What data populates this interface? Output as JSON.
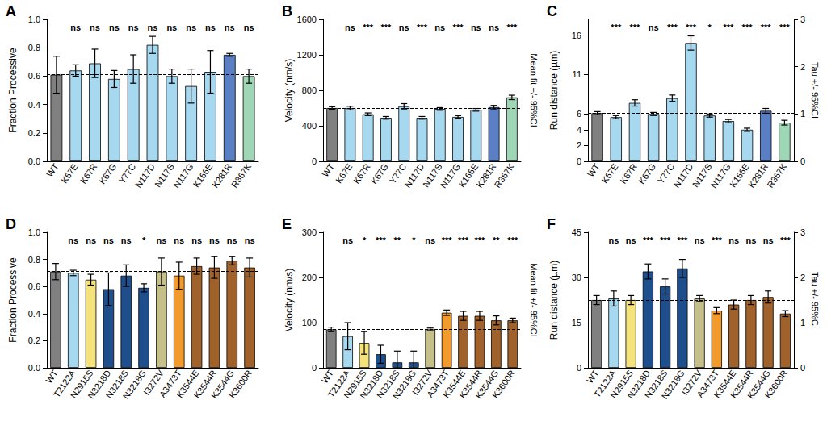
{
  "chart_data": [
    {
      "type": "bar",
      "title": "A",
      "categories": [
        "WT",
        "K67E",
        "K67R",
        "K67G",
        "Y77C",
        "N117D",
        "N117S",
        "N117G",
        "K166E",
        "K281R",
        "R367K"
      ],
      "values": [
        0.61,
        0.64,
        0.69,
        0.58,
        0.65,
        0.82,
        0.6,
        0.53,
        0.63,
        0.75,
        0.6
      ],
      "errors": [
        0.13,
        0.04,
        0.1,
        0.06,
        0.1,
        0.06,
        0.05,
        0.12,
        0.15,
        0.01,
        0.05
      ],
      "annotations": [
        null,
        "ns",
        "ns",
        "ns",
        "ns",
        "ns",
        "ns",
        "ns",
        "ns",
        "ns",
        "ns"
      ],
      "colors": [
        "#808080",
        "#a6d8f0",
        "#a6d8f0",
        "#a6d8f0",
        "#a6d8f0",
        "#a6d8f0",
        "#a6d8f0",
        "#a6d8f0",
        "#a6d8f0",
        "#5b7fc4",
        "#9fd6b5"
      ],
      "y_label": "Fraction Processive",
      "ylim": [
        0,
        1
      ],
      "yticks": [
        {
          "value": 0,
          "label": "0.0"
        },
        {
          "value": 0.2,
          "label": "0.2"
        },
        {
          "value": 0.4,
          "label": "0.4"
        },
        {
          "value": 0.6,
          "label": "0.6"
        },
        {
          "value": 0.8,
          "label": "0.8"
        },
        {
          "value": 1,
          "label": "1.0"
        }
      ]
    },
    {
      "type": "bar",
      "title": "B",
      "categories": [
        "WT",
        "K67E",
        "K67R",
        "K67G",
        "Y77C",
        "N117D",
        "N117S",
        "N117G",
        "K166E",
        "K281R",
        "R367K"
      ],
      "values": [
        600,
        600,
        530,
        490,
        620,
        490,
        590,
        500,
        580,
        610,
        720
      ],
      "errors": [
        15,
        20,
        15,
        15,
        30,
        15,
        15,
        15,
        15,
        20,
        25
      ],
      "annotations": [
        null,
        "ns",
        "***",
        "***",
        "ns",
        "***",
        "ns",
        "***",
        "ns",
        "ns",
        "***"
      ],
      "colors": [
        "#808080",
        "#a6d8f0",
        "#a6d8f0",
        "#a6d8f0",
        "#a6d8f0",
        "#a6d8f0",
        "#a6d8f0",
        "#a6d8f0",
        "#a6d8f0",
        "#5b7fc4",
        "#9fd6b5"
      ],
      "y_label": "Velocity (nm/s)",
      "y2_label": "Mean fit +/- 95%CI",
      "ylim": [
        0,
        1600
      ],
      "yticks": [
        0,
        400,
        800,
        1200,
        1600
      ]
    },
    {
      "type": "bar",
      "title": "C",
      "categories": [
        "WT",
        "K67E",
        "K67R",
        "K67G",
        "Y77C",
        "N117D",
        "N117S",
        "N117G",
        "K166E",
        "K281R",
        "R367K"
      ],
      "values": [
        6.1,
        5.6,
        7.4,
        6.0,
        8.0,
        15.0,
        5.8,
        5.1,
        4.0,
        6.4,
        4.9
      ],
      "errors": [
        0.2,
        0.2,
        0.4,
        0.2,
        0.4,
        0.9,
        0.2,
        0.2,
        0.2,
        0.3,
        0.3
      ],
      "annotations": [
        null,
        "***",
        "***",
        "ns",
        "***",
        "***",
        "*",
        "***",
        "***",
        "***",
        "***"
      ],
      "colors": [
        "#808080",
        "#a6d8f0",
        "#a6d8f0",
        "#a6d8f0",
        "#a6d8f0",
        "#a6d8f0",
        "#a6d8f0",
        "#a6d8f0",
        "#a6d8f0",
        "#5b7fc4",
        "#9fd6b5"
      ],
      "y_label": "Run distance (µm)",
      "y2_label": "Tau +/- 95%CI",
      "ylim": [
        0,
        18
      ],
      "yticks": [
        0,
        2,
        4,
        6,
        11,
        16
      ],
      "y2lim": [
        0,
        3
      ],
      "y2ticks": [
        0,
        1,
        2,
        3
      ]
    },
    {
      "type": "bar",
      "title": "D",
      "categories": [
        "WT",
        "T2122A",
        "N2915S",
        "N3218D",
        "N3218S",
        "N3218G",
        "I3272V",
        "A3473T",
        "K3544E",
        "K3544R",
        "K3544G",
        "K3600R"
      ],
      "values": [
        0.71,
        0.7,
        0.65,
        0.58,
        0.68,
        0.59,
        0.71,
        0.68,
        0.75,
        0.74,
        0.79,
        0.74
      ],
      "errors": [
        0.06,
        0.02,
        0.04,
        0.12,
        0.08,
        0.03,
        0.1,
        0.1,
        0.06,
        0.08,
        0.03,
        0.07
      ],
      "annotations": [
        null,
        "ns",
        "ns",
        "ns",
        "ns",
        "*",
        "ns",
        "ns",
        "ns",
        "ns",
        "ns",
        "ns"
      ],
      "colors": [
        "#808080",
        "#a6d8f0",
        "#f3e37a",
        "#1f4e8c",
        "#1f4e8c",
        "#1f4e8c",
        "#c5c089",
        "#f39a2c",
        "#a0622a",
        "#a0622a",
        "#a0622a",
        "#a0622a"
      ],
      "y_label": "Fraction Processive",
      "ylim": [
        0,
        1
      ],
      "yticks": [
        {
          "value": 0,
          "label": "0.0"
        },
        {
          "value": 0.2,
          "label": "0.2"
        },
        {
          "value": 0.4,
          "label": "0.4"
        },
        {
          "value": 0.6,
          "label": "0.6"
        },
        {
          "value": 0.8,
          "label": "0.8"
        },
        {
          "value": 1,
          "label": "1.0"
        }
      ]
    },
    {
      "type": "bar",
      "title": "E",
      "categories": [
        "WT",
        "T2122A",
        "N2915S",
        "N3218D",
        "N3218S",
        "N3218G",
        "I3272V",
        "A3473T",
        "K3544E",
        "K3544R",
        "K3544G",
        "K3600R"
      ],
      "values": [
        85,
        70,
        55,
        30,
        12,
        12,
        85,
        122,
        115,
        115,
        105,
        105
      ],
      "errors": [
        5,
        30,
        25,
        20,
        25,
        25,
        3,
        6,
        10,
        10,
        10,
        5
      ],
      "annotations": [
        null,
        "ns",
        "*",
        "***",
        "**",
        "*",
        "ns",
        "***",
        "***",
        "***",
        "**",
        "***"
      ],
      "colors": [
        "#808080",
        "#a6d8f0",
        "#f3e37a",
        "#1f4e8c",
        "#1f4e8c",
        "#1f4e8c",
        "#c5c089",
        "#f39a2c",
        "#a0622a",
        "#a0622a",
        "#a0622a",
        "#a0622a"
      ],
      "y_label": "Velocity (nm/s)",
      "y2_label": "Mean fit +/- 95%CI",
      "ylim": [
        0,
        300
      ],
      "yticks": [
        0,
        100,
        200,
        300
      ]
    },
    {
      "type": "bar",
      "title": "F",
      "categories": [
        "WT",
        "T2122A",
        "N2915S",
        "N3218D",
        "N3218S",
        "N3218G",
        "I3272V",
        "A3473T",
        "K3544E",
        "K3544R",
        "K3544G",
        "K3600R"
      ],
      "values": [
        22.5,
        23,
        22.5,
        32,
        27,
        33,
        23,
        19,
        21,
        22.5,
        23.5,
        18
      ],
      "errors": [
        1.5,
        2.5,
        1.5,
        2.5,
        2.5,
        3,
        1,
        1,
        1.5,
        1.5,
        2,
        1
      ],
      "annotations": [
        null,
        "ns",
        "ns",
        "***",
        "***",
        "***",
        "ns",
        "***",
        "ns",
        "ns",
        "ns",
        "***"
      ],
      "colors": [
        "#808080",
        "#a6d8f0",
        "#f3e37a",
        "#1f4e8c",
        "#1f4e8c",
        "#1f4e8c",
        "#c5c089",
        "#f39a2c",
        "#a0622a",
        "#a0622a",
        "#a0622a",
        "#a0622a"
      ],
      "y_label": "Run distance (µm)",
      "y2_label": "Tau +/- 95%CI",
      "ylim": [
        0,
        45
      ],
      "yticks": [
        0,
        15,
        30,
        45
      ],
      "y2lim": [
        0,
        3
      ],
      "y2ticks": [
        0,
        1,
        2,
        3
      ]
    }
  ]
}
